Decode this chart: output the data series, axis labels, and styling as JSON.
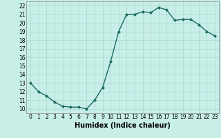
{
  "x": [
    0,
    1,
    2,
    3,
    4,
    5,
    6,
    7,
    8,
    9,
    10,
    11,
    12,
    13,
    14,
    15,
    16,
    17,
    18,
    19,
    20,
    21,
    22,
    23
  ],
  "y": [
    13.0,
    12.0,
    11.5,
    10.8,
    10.3,
    10.2,
    10.2,
    10.0,
    11.0,
    12.5,
    15.5,
    19.0,
    21.0,
    21.0,
    21.3,
    21.2,
    21.8,
    21.5,
    20.3,
    20.4,
    20.4,
    19.8,
    19.0,
    18.5
  ],
  "line_color": "#1a6b5a",
  "marker": "D",
  "marker_size": 2.0,
  "bg_color": "#c8eee8",
  "grid_color": "#a8d8d0",
  "xlabel": "Humidex (Indice chaleur)",
  "xlim": [
    -0.5,
    23.5
  ],
  "ylim": [
    9.5,
    22.5
  ],
  "xticks": [
    0,
    1,
    2,
    3,
    4,
    5,
    6,
    7,
    8,
    9,
    10,
    11,
    12,
    13,
    14,
    15,
    16,
    17,
    18,
    19,
    20,
    21,
    22,
    23
  ],
  "yticks": [
    10,
    11,
    12,
    13,
    14,
    15,
    16,
    17,
    18,
    19,
    20,
    21,
    22
  ],
  "tick_fontsize": 5.5,
  "xlabel_fontsize": 7.0,
  "line_width": 1.0
}
